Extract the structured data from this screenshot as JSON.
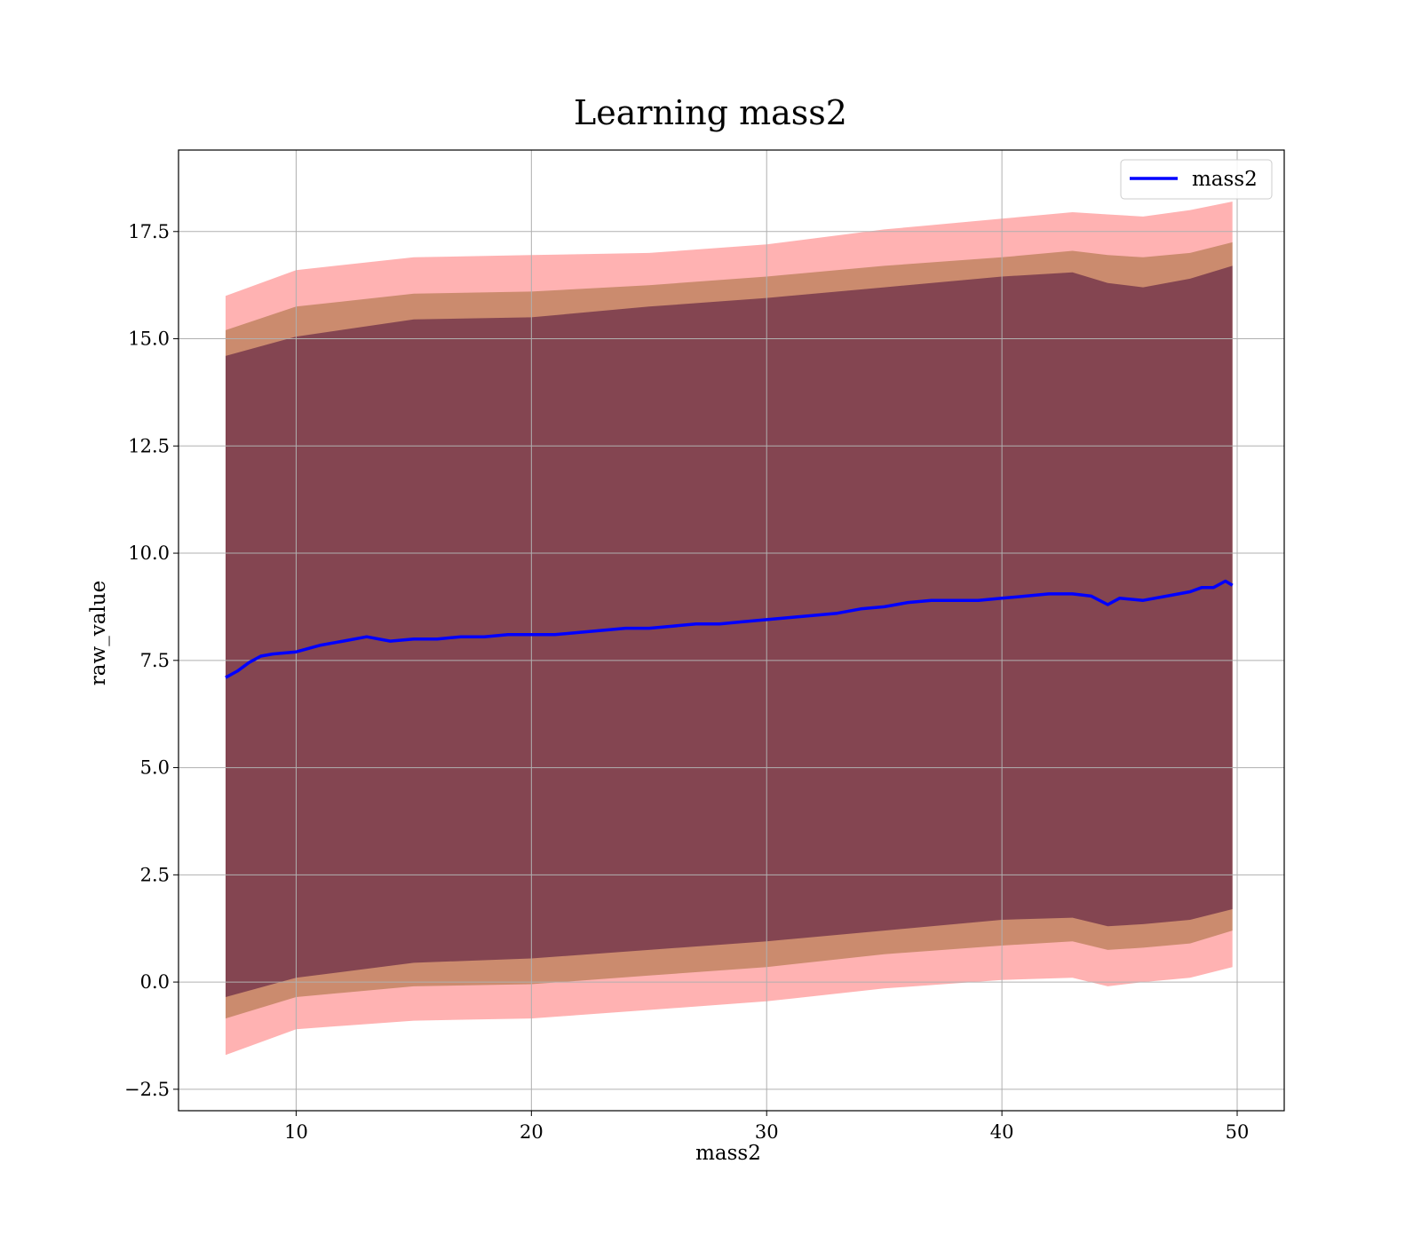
{
  "chart_data": {
    "type": "line",
    "title": "Learning mass2",
    "xlabel": "mass2",
    "ylabel": "raw_value",
    "xlim": [
      5,
      52
    ],
    "ylim": [
      -3,
      19.4
    ],
    "xticks": [
      10,
      20,
      30,
      40,
      50
    ],
    "yticks": [
      -2.5,
      0.0,
      2.5,
      5.0,
      7.5,
      10.0,
      12.5,
      15.0,
      17.5
    ],
    "xtick_labels": [
      "10",
      "20",
      "30",
      "40",
      "50"
    ],
    "ytick_labels": [
      "−2.5",
      "0.0",
      "2.5",
      "5.0",
      "7.5",
      "10.0",
      "12.5",
      "15.0",
      "17.5"
    ],
    "grid": true,
    "legend": {
      "position": "upper-right",
      "entries": [
        "mass2"
      ]
    },
    "colors": {
      "line": "#0000ff",
      "band_outer": "#ff0000",
      "band_middle": "#8b5a1a",
      "band_inner": "#4b0c3a"
    },
    "series": [
      {
        "name": "mass2",
        "x": [
          7.0,
          7.5,
          8.0,
          8.5,
          9.0,
          10.0,
          11.0,
          12.0,
          13.0,
          14.0,
          15.0,
          16.0,
          17.0,
          18.0,
          19.0,
          20.0,
          21.0,
          22.0,
          23.0,
          24.0,
          25.0,
          26.0,
          27.0,
          28.0,
          29.0,
          30.0,
          31.0,
          32.0,
          33.0,
          34.0,
          35.0,
          36.0,
          37.0,
          38.0,
          39.0,
          40.0,
          41.0,
          42.0,
          43.0,
          43.8,
          44.5,
          45.0,
          46.0,
          47.0,
          48.0,
          48.5,
          49.0,
          49.5,
          49.8
        ],
        "y": [
          7.1,
          7.25,
          7.45,
          7.6,
          7.65,
          7.7,
          7.85,
          7.95,
          8.05,
          7.95,
          8.0,
          8.0,
          8.05,
          8.05,
          8.1,
          8.1,
          8.1,
          8.15,
          8.2,
          8.25,
          8.25,
          8.3,
          8.35,
          8.35,
          8.4,
          8.45,
          8.5,
          8.55,
          8.6,
          8.7,
          8.75,
          8.85,
          8.9,
          8.9,
          8.9,
          8.95,
          9.0,
          9.05,
          9.05,
          9.0,
          8.8,
          8.95,
          8.9,
          9.0,
          9.1,
          9.2,
          9.2,
          9.35,
          9.25
        ]
      }
    ],
    "bands": [
      {
        "name": "outer",
        "x": [
          7.0,
          10.0,
          15.0,
          20.0,
          25.0,
          30.0,
          35.0,
          40.0,
          43.0,
          44.5,
          46.0,
          48.0,
          49.8
        ],
        "upper": [
          16.0,
          16.6,
          16.9,
          16.95,
          17.0,
          17.2,
          17.55,
          17.8,
          17.95,
          17.9,
          17.85,
          18.0,
          18.2
        ],
        "lower": [
          -1.7,
          -1.1,
          -0.9,
          -0.85,
          -0.65,
          -0.45,
          -0.15,
          0.05,
          0.1,
          -0.1,
          0.0,
          0.1,
          0.35
        ]
      },
      {
        "name": "middle",
        "x": [
          7.0,
          10.0,
          15.0,
          20.0,
          25.0,
          30.0,
          35.0,
          40.0,
          43.0,
          44.5,
          46.0,
          48.0,
          49.8
        ],
        "upper": [
          15.2,
          15.75,
          16.05,
          16.1,
          16.25,
          16.45,
          16.7,
          16.9,
          17.05,
          16.95,
          16.9,
          17.0,
          17.25
        ],
        "lower": [
          -0.85,
          -0.35,
          -0.1,
          -0.05,
          0.15,
          0.35,
          0.65,
          0.85,
          0.95,
          0.75,
          0.8,
          0.9,
          1.2
        ]
      },
      {
        "name": "inner",
        "x": [
          7.0,
          10.0,
          15.0,
          20.0,
          25.0,
          30.0,
          35.0,
          40.0,
          43.0,
          44.5,
          46.0,
          48.0,
          49.8
        ],
        "upper": [
          14.6,
          15.05,
          15.45,
          15.5,
          15.75,
          15.95,
          16.2,
          16.45,
          16.55,
          16.3,
          16.2,
          16.4,
          16.7
        ],
        "lower": [
          -0.35,
          0.1,
          0.45,
          0.55,
          0.75,
          0.95,
          1.2,
          1.45,
          1.5,
          1.3,
          1.35,
          1.45,
          1.7
        ]
      }
    ]
  }
}
